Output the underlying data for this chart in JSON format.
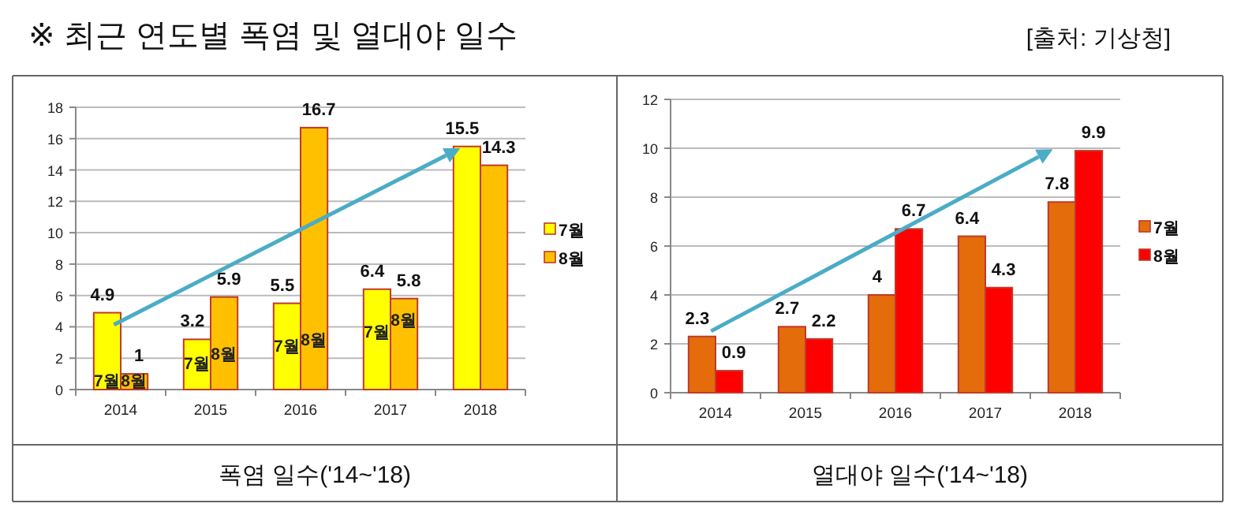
{
  "chart_data": [
    {
      "type": "bar",
      "title": "※ 최근 연도별 폭염 및 열대야 일수",
      "xlabel": "폭염 일수('14~'18)",
      "categories": [
        "2014",
        "2015",
        "2016",
        "2017",
        "2018"
      ],
      "series": [
        {
          "name": "7월",
          "color": "#ffff00",
          "values": [
            4.9,
            3.2,
            5.5,
            6.4,
            15.5
          ]
        },
        {
          "name": "8월",
          "color": "#ffc000",
          "values": [
            1,
            5.9,
            16.7,
            5.8,
            14.3
          ]
        }
      ],
      "annotations": [
        "[출처: 기상청]",
        {
          "text": "7월",
          "x": "2014",
          "y": 0.6
        },
        {
          "text": "8월",
          "x": "2014",
          "y": 0.6
        },
        {
          "text": "7월",
          "x": "2015",
          "y": 1.7
        },
        {
          "text": "8월",
          "x": "2015",
          "y": 2.3
        },
        {
          "text": "7월",
          "x": "2016",
          "y": 2.8
        },
        {
          "text": "8월",
          "x": "2016",
          "y": 3.2
        },
        {
          "text": "7월",
          "x": "2017",
          "y": 3.7
        },
        {
          "text": "8월",
          "x": "2017",
          "y": 4.5
        }
      ],
      "ylim": [
        0,
        18
      ],
      "yticks": [
        0,
        2,
        4,
        6,
        8,
        10,
        12,
        14,
        16,
        18
      ],
      "grid": "y",
      "legend": "right",
      "data_labels": true
    },
    {
      "type": "bar",
      "xlabel": "열대야 일수('14~'18)",
      "categories": [
        "2014",
        "2015",
        "2016",
        "2017",
        "2018"
      ],
      "series": [
        {
          "name": "7월",
          "color": "#e46c0a",
          "values": [
            2.3,
            2.7,
            4,
            6.4,
            7.8
          ]
        },
        {
          "name": "8월",
          "color": "#ff0000",
          "values": [
            0.9,
            2.2,
            6.7,
            4.3,
            9.9
          ]
        }
      ],
      "ylim": [
        0,
        12
      ],
      "yticks": [
        0,
        2,
        4,
        6,
        8,
        10,
        12
      ],
      "grid": "y",
      "legend": "right",
      "data_labels": true
    }
  ]
}
